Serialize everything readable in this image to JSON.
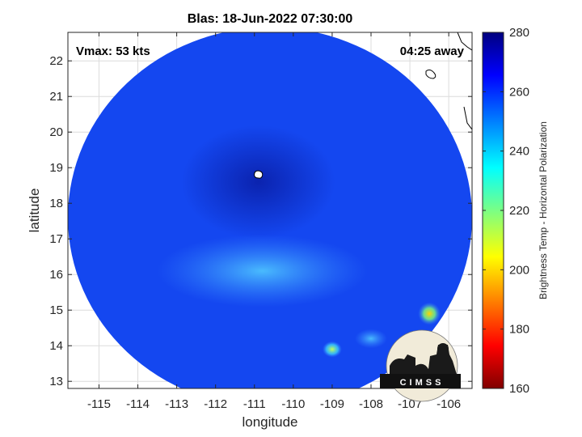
{
  "chart_data": {
    "type": "heatmap",
    "title": "Blas: 18-Jun-2022 07:30:00",
    "xlabel": "longitude",
    "ylabel": "latitude",
    "xlim": [
      -115.8,
      -105.4
    ],
    "ylim": [
      12.8,
      22.8
    ],
    "xticks": [
      -115,
      -114,
      -113,
      -112,
      -111,
      -110,
      -109,
      -108,
      -107,
      -106
    ],
    "yticks": [
      13,
      14,
      15,
      16,
      17,
      18,
      19,
      20,
      21,
      22
    ],
    "xtick_labels": [
      "-115",
      "-114",
      "-113",
      "-112",
      "-111",
      "-110",
      "-109",
      "-108",
      "-107",
      "-106"
    ],
    "ytick_labels": [
      "13",
      "14",
      "15",
      "16",
      "17",
      "18",
      "19",
      "20",
      "21",
      "22"
    ],
    "grid": true,
    "annotations": {
      "vmax": "Vmax: 53 kts",
      "time_away": "04:25 away"
    },
    "storm_center": {
      "lon": -110.9,
      "lat": 18.8
    },
    "colorbar": {
      "label": "Brightness Temp - Horizontal Polarization",
      "min": 160,
      "max": 280,
      "ticks": [
        160,
        180,
        200,
        220,
        240,
        260,
        280
      ],
      "tick_labels": [
        "160",
        "180",
        "200",
        "220",
        "240",
        "260",
        "280"
      ],
      "colormap": "jet"
    },
    "swath": {
      "center_lon": -110.6,
      "center_lat": 17.6,
      "background_temp": 258
    },
    "features": [
      {
        "name": "warm-band",
        "lon": -110.8,
        "lat": 16.1,
        "temp": 245
      },
      {
        "name": "warm-spot-east",
        "lon": -106.5,
        "lat": 14.9,
        "temp": 200
      },
      {
        "name": "warm-spot-south",
        "lon": -109.0,
        "lat": 13.9,
        "temp": 222
      },
      {
        "name": "warm-spot-sw",
        "lon": -108.0,
        "lat": 14.2,
        "temp": 238
      },
      {
        "name": "cold-eye",
        "lon": -110.9,
        "lat": 18.6,
        "temp": 270
      }
    ]
  },
  "logo": {
    "text": "CIMSS"
  }
}
